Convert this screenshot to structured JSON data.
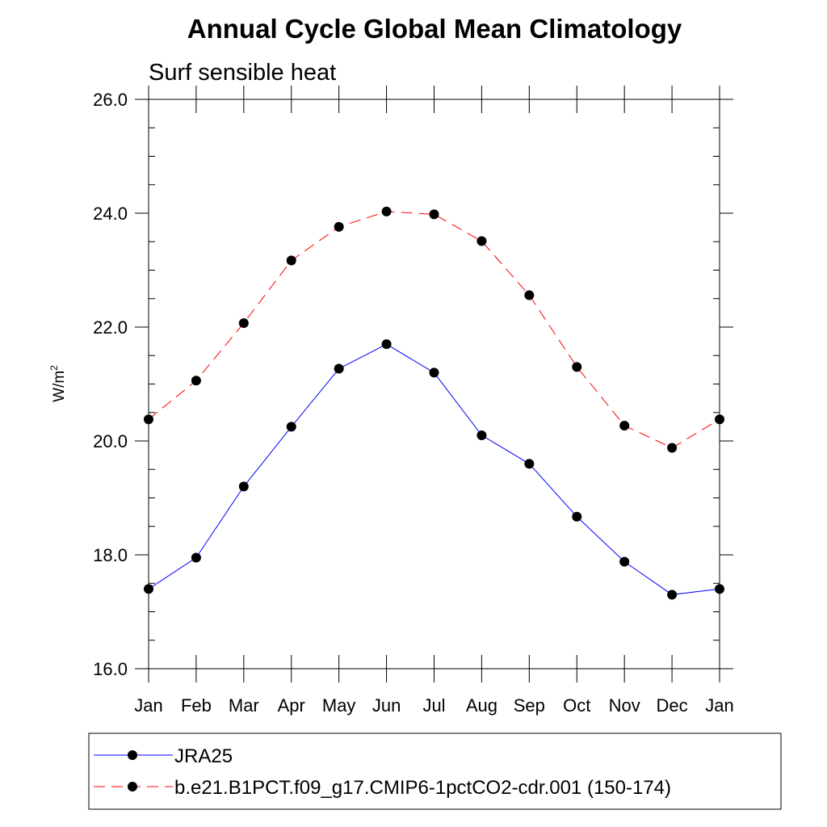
{
  "chart_data": {
    "type": "line",
    "title": "Annual Cycle Global Mean Climatology",
    "subtitle": "Surf sensible heat",
    "xlabel": "",
    "ylabel_base": "W/m",
    "ylabel_sup": "2",
    "ylim": [
      16.0,
      26.0
    ],
    "y_ticks": [
      "16.0",
      "18.0",
      "20.0",
      "22.0",
      "24.0",
      "26.0"
    ],
    "y_tick_values": [
      16,
      18,
      20,
      22,
      24,
      26
    ],
    "categories": [
      "Jan",
      "Feb",
      "Mar",
      "Apr",
      "May",
      "Jun",
      "Jul",
      "Aug",
      "Sep",
      "Oct",
      "Nov",
      "Dec",
      "Jan"
    ],
    "grid": false,
    "legend_position": "bottom",
    "series": [
      {
        "name": "JRA25",
        "color": "#0000ff",
        "dash": "solid",
        "marker": "filled-circle",
        "values": [
          17.4,
          17.95,
          19.2,
          20.25,
          21.27,
          21.7,
          21.2,
          20.1,
          19.6,
          18.67,
          17.88,
          17.3,
          17.4
        ]
      },
      {
        "name": "b.e21.B1PCT.f09_g17.CMIP6-1pctCO2-cdr.001 (150-174)",
        "color": "#ff0000",
        "dash": "dashed",
        "marker": "filled-circle",
        "values": [
          20.38,
          21.06,
          22.07,
          23.17,
          23.76,
          24.03,
          23.98,
          23.51,
          22.56,
          21.3,
          20.27,
          19.88,
          20.38
        ]
      }
    ]
  }
}
